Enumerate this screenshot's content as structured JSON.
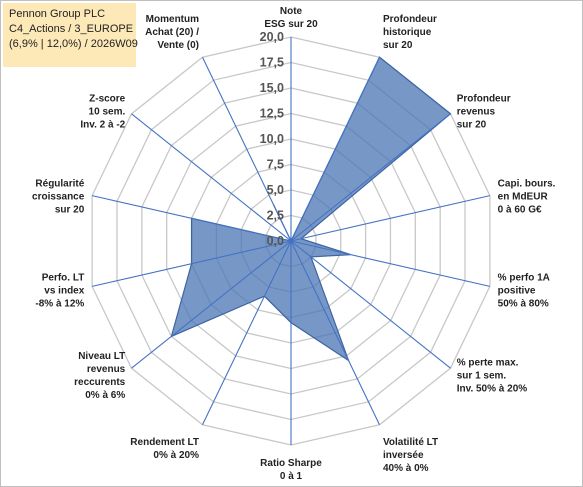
{
  "header": {
    "title_lines": [
      "Pennon Group PLC",
      "C4_Actions / 3_EUROPE",
      "(6,9% | 12,0%) / 2026W09"
    ]
  },
  "chart_data": {
    "type": "radar",
    "axes": [
      {
        "label": [
          "Note",
          "ESG sur 20"
        ]
      },
      {
        "label": [
          "Profondeur",
          "historique",
          "sur 20"
        ]
      },
      {
        "label": [
          "Profondeur",
          "revenus",
          "sur 20"
        ]
      },
      {
        "label": [
          "Capi. bours.",
          "en MdEUR",
          "0 à 60 G€"
        ]
      },
      {
        "label": [
          "% perfo 1A",
          "positive",
          "50% à 80%"
        ]
      },
      {
        "label": [
          "% perte max.",
          "sur 1 sem.",
          "Inv. 50% à 20%"
        ]
      },
      {
        "label": [
          "Volatilité LT",
          "inversée",
          "40% à 0%"
        ]
      },
      {
        "label": [
          "Ratio Sharpe",
          "0 à 1"
        ]
      },
      {
        "label": [
          "Rendement LT",
          "0% à 20%"
        ]
      },
      {
        "label": [
          "Niveau LT",
          "revenus",
          "reccurents",
          "0% à 6%"
        ]
      },
      {
        "label": [
          "Perfo. LT",
          "vs index",
          "-8% à 12%"
        ]
      },
      {
        "label": [
          "Régularité",
          "croissance",
          "sur 20"
        ]
      },
      {
        "label": [
          "Z-score",
          "10 sem.",
          "Inv. 2 à -2"
        ]
      },
      {
        "label": [
          "Momentum",
          "Achat (20) /",
          "Vente (0)"
        ]
      }
    ],
    "tick_labels": [
      "0,0",
      "2,5",
      "5,0",
      "7,5",
      "10,0",
      "12,5",
      "15,0",
      "17,5",
      "20,0"
    ],
    "rmin": 0,
    "rmax": 20,
    "series": [
      {
        "values": [
          0,
          20,
          20,
          1,
          6,
          2.5,
          13,
          8,
          6,
          15,
          10,
          10,
          0,
          4
        ]
      }
    ],
    "colors": {
      "fill": "#4a74b4",
      "fill_opacity": 0.75,
      "stroke": "#3d64a2",
      "axis": "#4472c4",
      "grid": "#c8c8c8",
      "title_bg": "#fde9b8"
    },
    "grid": true
  }
}
